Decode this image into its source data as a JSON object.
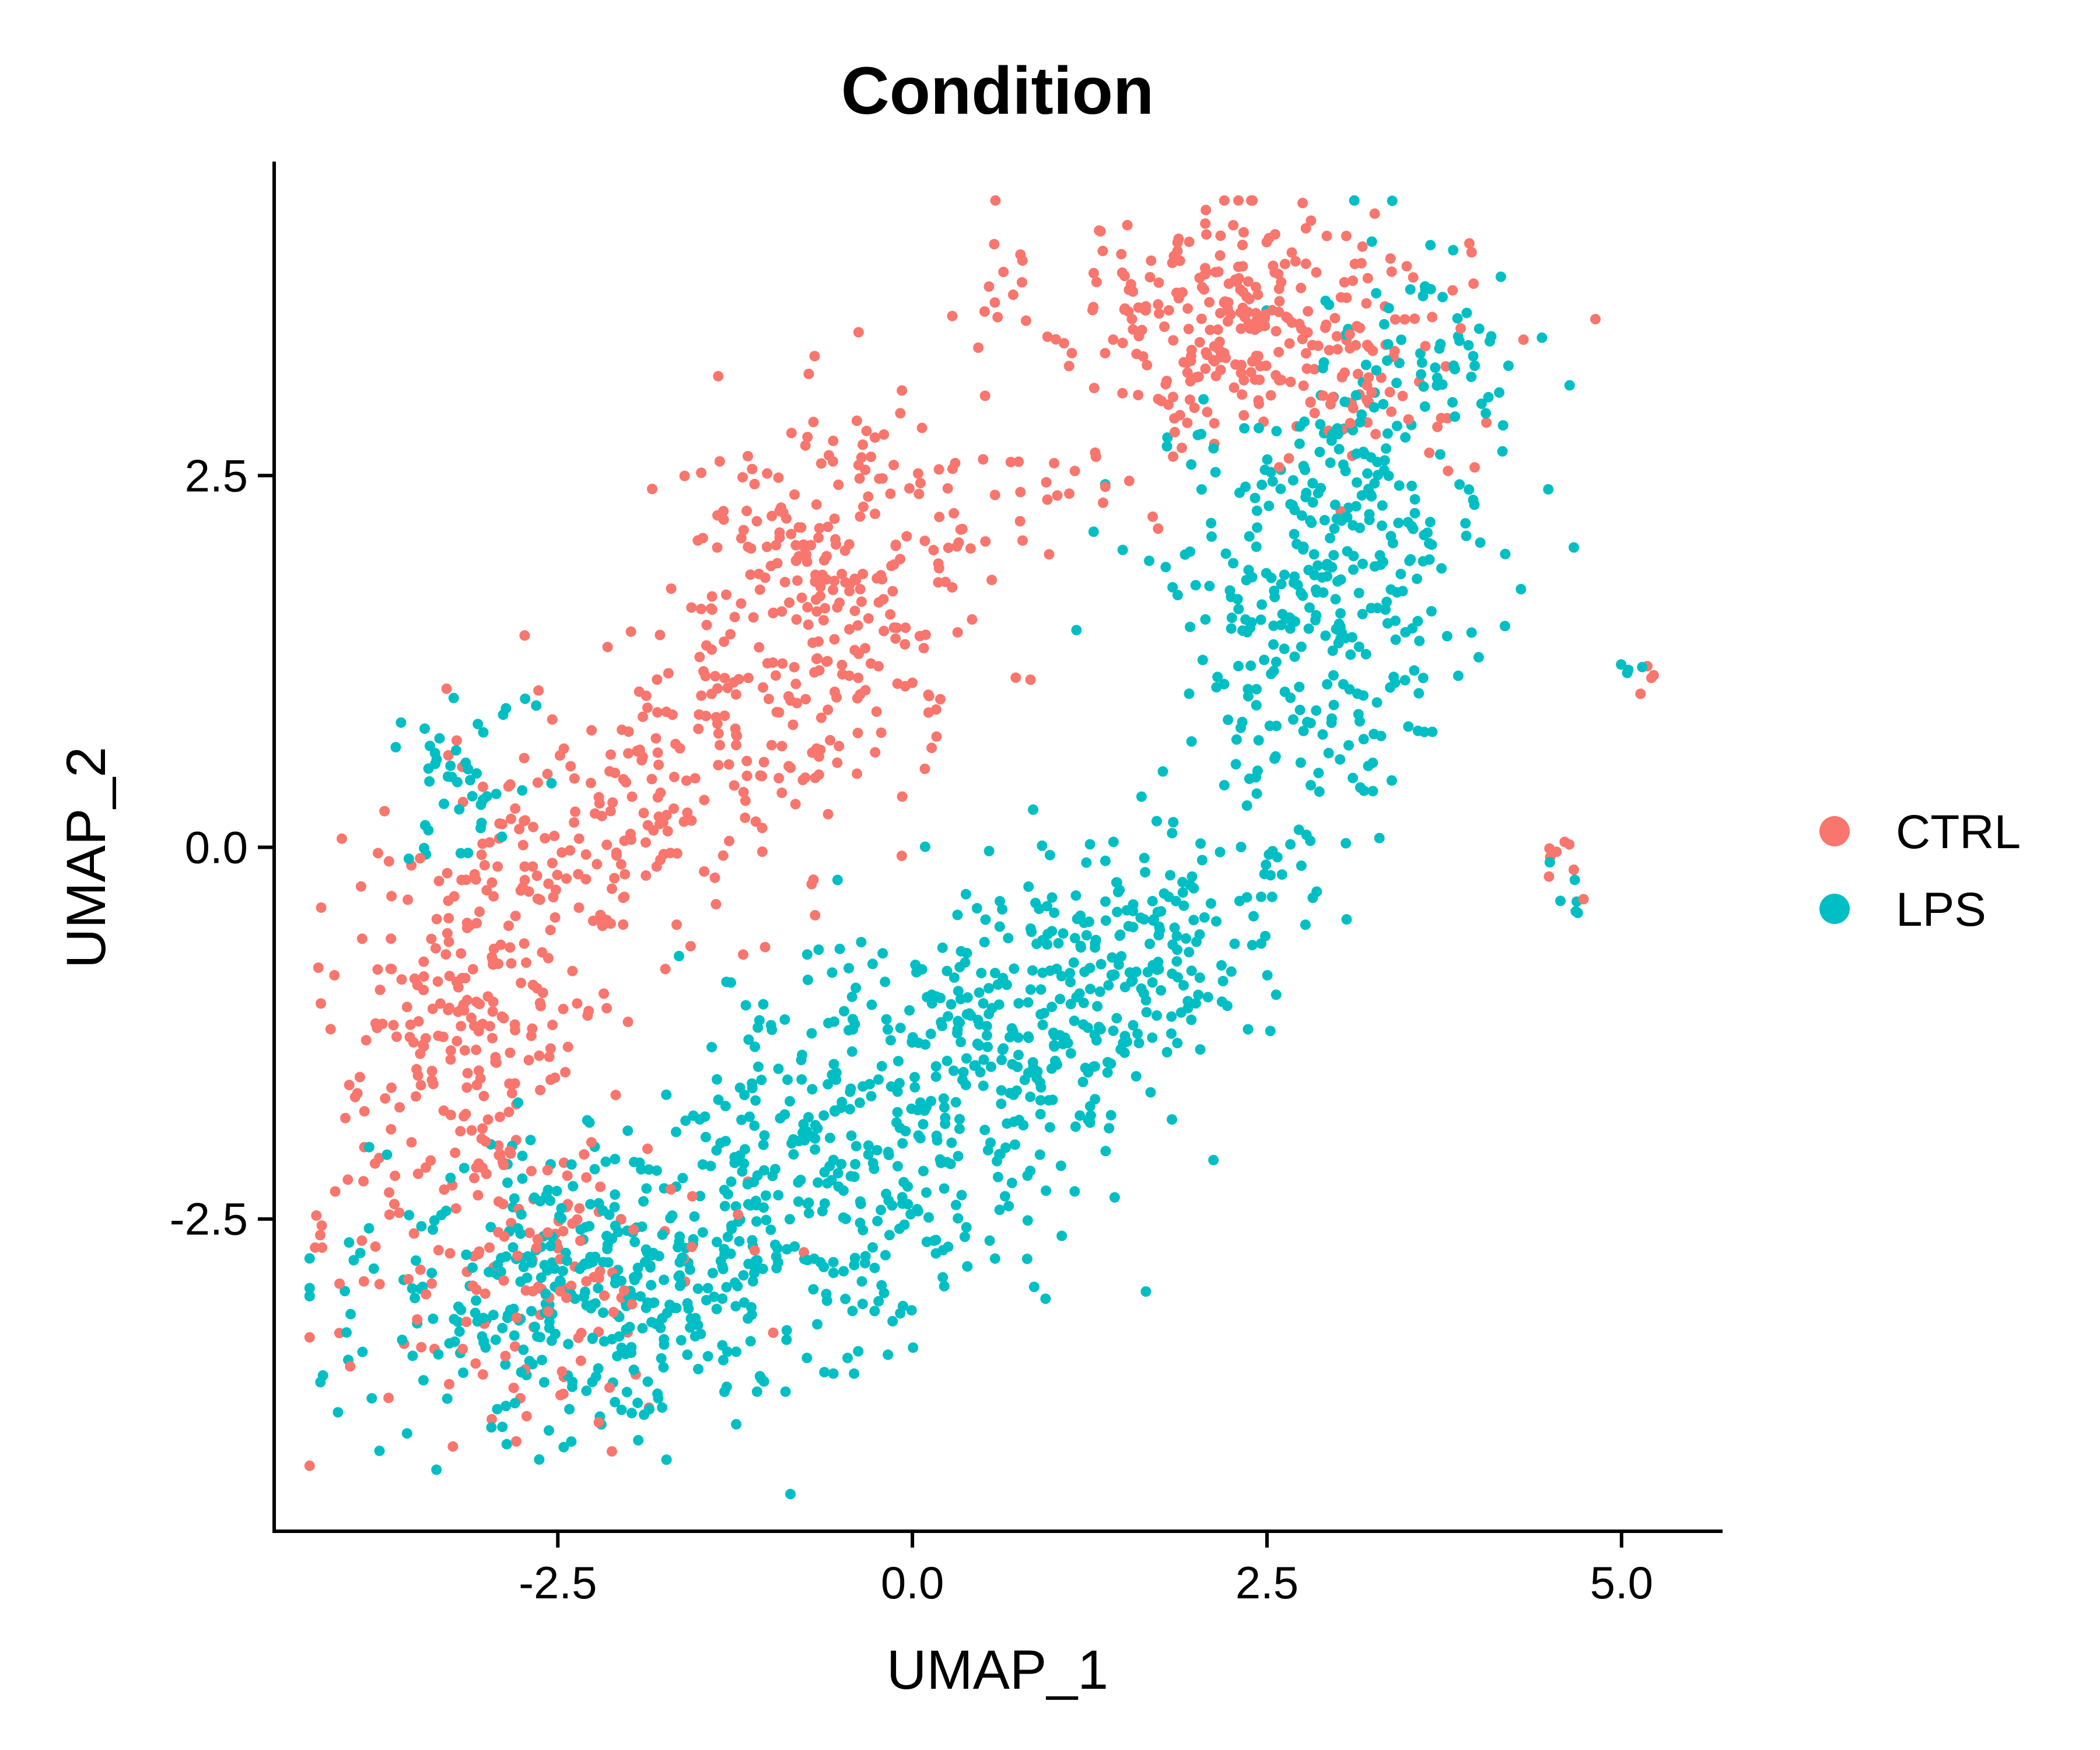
{
  "chart_data": {
    "type": "scatter",
    "title": "Condition",
    "xlabel": "UMAP_1",
    "ylabel": "UMAP_2",
    "xlim": [
      -4.5,
      5.7
    ],
    "ylim": [
      -4.6,
      4.6
    ],
    "xticks": [
      -2.5,
      0.0,
      2.5,
      5.0
    ],
    "xtick_labels": [
      "-2.5",
      "0.0",
      "2.5",
      "5.0"
    ],
    "yticks": [
      -2.5,
      0.0,
      2.5
    ],
    "ytick_labels": [
      "-2.5",
      "0.0",
      "2.5"
    ],
    "grid": false,
    "legend_position": "right",
    "series": [
      {
        "name": "CTRL",
        "color": "#F8766D"
      },
      {
        "name": "LPS",
        "color": "#00BFC4"
      }
    ],
    "clusters": [
      {
        "series": "CTRL",
        "cx": 2.4,
        "cy": 3.5,
        "sx": 0.75,
        "sy": 0.45,
        "rho": -0.2,
        "n": 330
      },
      {
        "series": "LPS",
        "cx": 3.6,
        "cy": 3.3,
        "sx": 0.45,
        "sy": 0.4,
        "rho": 0.0,
        "n": 70
      },
      {
        "series": "LPS",
        "cx": 2.9,
        "cy": 2.0,
        "sx": 0.6,
        "sy": 0.6,
        "rho": 0.3,
        "n": 280
      },
      {
        "series": "LPS",
        "cx": 3.0,
        "cy": 0.9,
        "sx": 0.35,
        "sy": 0.45,
        "rho": 0.2,
        "n": 70
      },
      {
        "series": "CTRL",
        "cx": -0.6,
        "cy": 1.9,
        "sx": 0.6,
        "sy": 0.55,
        "rho": 0.1,
        "n": 220
      },
      {
        "series": "CTRL",
        "cx": -1.5,
        "cy": 0.5,
        "sx": 0.8,
        "sy": 0.6,
        "rho": 0.55,
        "n": 220
      },
      {
        "series": "CTRL",
        "cx": -3.1,
        "cy": -1.1,
        "sx": 0.55,
        "sy": 0.75,
        "rho": 0.3,
        "n": 260
      },
      {
        "series": "CTRL",
        "cx": -2.6,
        "cy": -2.9,
        "sx": 0.6,
        "sy": 0.45,
        "rho": 0.0,
        "n": 140
      },
      {
        "series": "LPS",
        "cx": 1.3,
        "cy": -0.9,
        "sx": 0.75,
        "sy": 0.6,
        "rho": 0.5,
        "n": 300
      },
      {
        "series": "LPS",
        "cx": -0.4,
        "cy": -2.1,
        "sx": 0.95,
        "sy": 0.75,
        "rho": 0.4,
        "n": 420
      },
      {
        "series": "LPS",
        "cx": -2.3,
        "cy": -2.9,
        "sx": 0.8,
        "sy": 0.5,
        "rho": 0.1,
        "n": 360
      },
      {
        "series": "LPS",
        "cx": -3.2,
        "cy": 0.6,
        "sx": 0.25,
        "sy": 0.35,
        "rho": 0.0,
        "n": 45
      },
      {
        "series": "CTRL",
        "cx": 0.9,
        "cy": 2.3,
        "sx": 0.4,
        "sy": 0.25,
        "rho": 0.0,
        "n": 20
      },
      {
        "series": "CTRL",
        "cx": 4.6,
        "cy": -0.2,
        "sx": 0.1,
        "sy": 0.25,
        "rho": 0.0,
        "n": 8
      },
      {
        "series": "LPS",
        "cx": 4.6,
        "cy": -0.3,
        "sx": 0.08,
        "sy": 0.2,
        "rho": 0.0,
        "n": 6
      },
      {
        "series": "CTRL",
        "cx": 5.2,
        "cy": 1.15,
        "sx": 0.04,
        "sy": 0.04,
        "rho": 0.0,
        "n": 4
      },
      {
        "series": "LPS",
        "cx": 5.1,
        "cy": 1.2,
        "sx": 0.06,
        "sy": 0.06,
        "rho": 0.0,
        "n": 4
      }
    ]
  }
}
